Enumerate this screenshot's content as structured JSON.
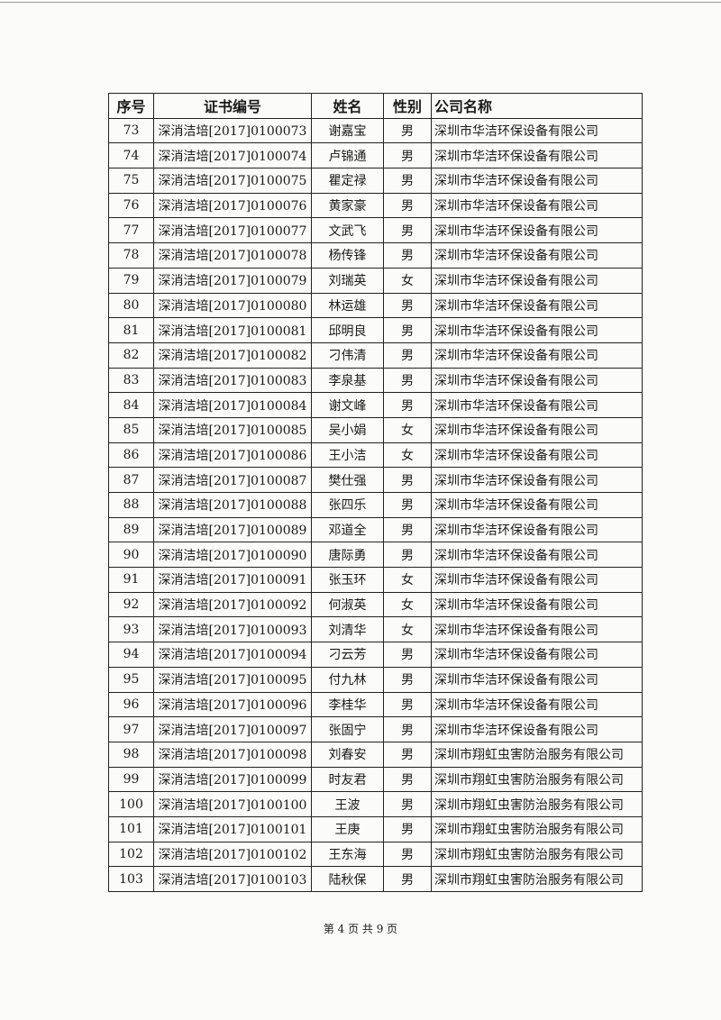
{
  "table": {
    "headers": [
      "序号",
      "证书编号",
      "姓名",
      "性别",
      "公司名称"
    ],
    "rows": [
      [
        "73",
        "深消洁培[2017]0100073",
        "谢嘉宝",
        "男",
        "深圳市华洁环保设备有限公司"
      ],
      [
        "74",
        "深消洁培[2017]0100074",
        "卢锦通",
        "男",
        "深圳市华洁环保设备有限公司"
      ],
      [
        "75",
        "深消洁培[2017]0100075",
        "瞿定禄",
        "男",
        "深圳市华洁环保设备有限公司"
      ],
      [
        "76",
        "深消洁培[2017]0100076",
        "黄家豪",
        "男",
        "深圳市华洁环保设备有限公司"
      ],
      [
        "77",
        "深消洁培[2017]0100077",
        "文武飞",
        "男",
        "深圳市华洁环保设备有限公司"
      ],
      [
        "78",
        "深消洁培[2017]0100078",
        "杨传锋",
        "男",
        "深圳市华洁环保设备有限公司"
      ],
      [
        "79",
        "深消洁培[2017]0100079",
        "刘瑞英",
        "女",
        "深圳市华洁环保设备有限公司"
      ],
      [
        "80",
        "深消洁培[2017]0100080",
        "林运雄",
        "男",
        "深圳市华洁环保设备有限公司"
      ],
      [
        "81",
        "深消洁培[2017]0100081",
        "邱明良",
        "男",
        "深圳市华洁环保设备有限公司"
      ],
      [
        "82",
        "深消洁培[2017]0100082",
        "刁伟清",
        "男",
        "深圳市华洁环保设备有限公司"
      ],
      [
        "83",
        "深消洁培[2017]0100083",
        "李泉基",
        "男",
        "深圳市华洁环保设备有限公司"
      ],
      [
        "84",
        "深消洁培[2017]0100084",
        "谢文峰",
        "男",
        "深圳市华洁环保设备有限公司"
      ],
      [
        "85",
        "深消洁培[2017]0100085",
        "吴小娟",
        "女",
        "深圳市华洁环保设备有限公司"
      ],
      [
        "86",
        "深消洁培[2017]0100086",
        "王小洁",
        "女",
        "深圳市华洁环保设备有限公司"
      ],
      [
        "87",
        "深消洁培[2017]0100087",
        "樊仕强",
        "男",
        "深圳市华洁环保设备有限公司"
      ],
      [
        "88",
        "深消洁培[2017]0100088",
        "张四乐",
        "男",
        "深圳市华洁环保设备有限公司"
      ],
      [
        "89",
        "深消洁培[2017]0100089",
        "邓道全",
        "男",
        "深圳市华洁环保设备有限公司"
      ],
      [
        "90",
        "深消洁培[2017]0100090",
        "唐际勇",
        "男",
        "深圳市华洁环保设备有限公司"
      ],
      [
        "91",
        "深消洁培[2017]0100091",
        "张玉环",
        "女",
        "深圳市华洁环保设备有限公司"
      ],
      [
        "92",
        "深消洁培[2017]0100092",
        "何淑英",
        "女",
        "深圳市华洁环保设备有限公司"
      ],
      [
        "93",
        "深消洁培[2017]0100093",
        "刘清华",
        "女",
        "深圳市华洁环保设备有限公司"
      ],
      [
        "94",
        "深消洁培[2017]0100094",
        "刁云芳",
        "男",
        "深圳市华洁环保设备有限公司"
      ],
      [
        "95",
        "深消洁培[2017]0100095",
        "付九林",
        "男",
        "深圳市华洁环保设备有限公司"
      ],
      [
        "96",
        "深消洁培[2017]0100096",
        "李桂华",
        "男",
        "深圳市华洁环保设备有限公司"
      ],
      [
        "97",
        "深消洁培[2017]0100097",
        "张固宁",
        "男",
        "深圳市华洁环保设备有限公司"
      ],
      [
        "98",
        "深消洁培[2017]0100098",
        "刘春安",
        "男",
        "深圳市翔虹虫害防治服务有限公司"
      ],
      [
        "99",
        "深消洁培[2017]0100099",
        "时友君",
        "男",
        "深圳市翔虹虫害防治服务有限公司"
      ],
      [
        "100",
        "深消洁培[2017]0100100",
        "王波",
        "男",
        "深圳市翔虹虫害防治服务有限公司"
      ],
      [
        "101",
        "深消洁培[2017]0100101",
        "王庚",
        "男",
        "深圳市翔虹虫害防治服务有限公司"
      ],
      [
        "102",
        "深消洁培[2017]0100102",
        "王东海",
        "男",
        "深圳市翔虹虫害防治服务有限公司"
      ],
      [
        "103",
        "深消洁培[2017]0100103",
        "陆秋保",
        "男",
        "深圳市翔虹虫害防治服务有限公司"
      ]
    ]
  },
  "footer": {
    "page_label": "第 4 页 共 9 页"
  }
}
